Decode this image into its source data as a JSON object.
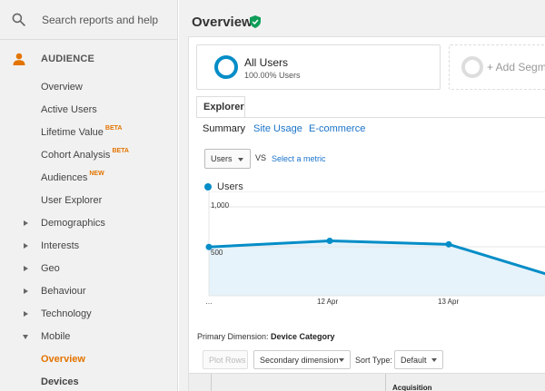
{
  "search": {
    "placeholder": "Search reports and help"
  },
  "section": {
    "label": "AUDIENCE"
  },
  "nav": {
    "overview": "Overview",
    "active_users": "Active Users",
    "lifetime_value": "Lifetime Value",
    "lifetime_badge": "BETA",
    "cohort_analysis": "Cohort Analysis",
    "cohort_badge": "BETA",
    "audiences": "Audiences",
    "audiences_badge": "NEW",
    "user_explorer": "User Explorer",
    "demographics": "Demographics",
    "interests": "Interests",
    "geo": "Geo",
    "behaviour": "Behaviour",
    "technology": "Technology",
    "mobile": "Mobile",
    "mobile_overview": "Overview",
    "devices": "Devices"
  },
  "header": {
    "title": "Overview"
  },
  "segments": {
    "all_users": "All Users",
    "all_users_pct": "100.00% Users",
    "add_segment": "+ Add Segment"
  },
  "tabs": {
    "explorer": "Explorer"
  },
  "subtabs": {
    "summary": "Summary",
    "site_usage": "Site Usage",
    "ecommerce": "E-commerce"
  },
  "metric": {
    "selected": "Users",
    "vs": "VS",
    "select_metric": "Select a metric"
  },
  "chart_data": {
    "type": "area",
    "series": [
      {
        "name": "Users",
        "values": [
          560,
          630,
          590,
          250
        ]
      }
    ],
    "x": [
      "…",
      "12 Apr",
      "13 Apr",
      ""
    ],
    "y_ticks": [
      "1,000",
      "500"
    ],
    "ylim": [
      0,
      1000
    ],
    "line_color": "#058dc7",
    "fill_color": "#e6f3fa"
  },
  "primary_dimension": {
    "label": "Primary Dimension:",
    "value": "Device Category"
  },
  "controls": {
    "plot_rows": "Plot Rows",
    "secondary_dimension": "Secondary dimension",
    "sort_type_label": "Sort Type:",
    "sort_type": "Default"
  },
  "table": {
    "acquisition": "Acquisition"
  }
}
